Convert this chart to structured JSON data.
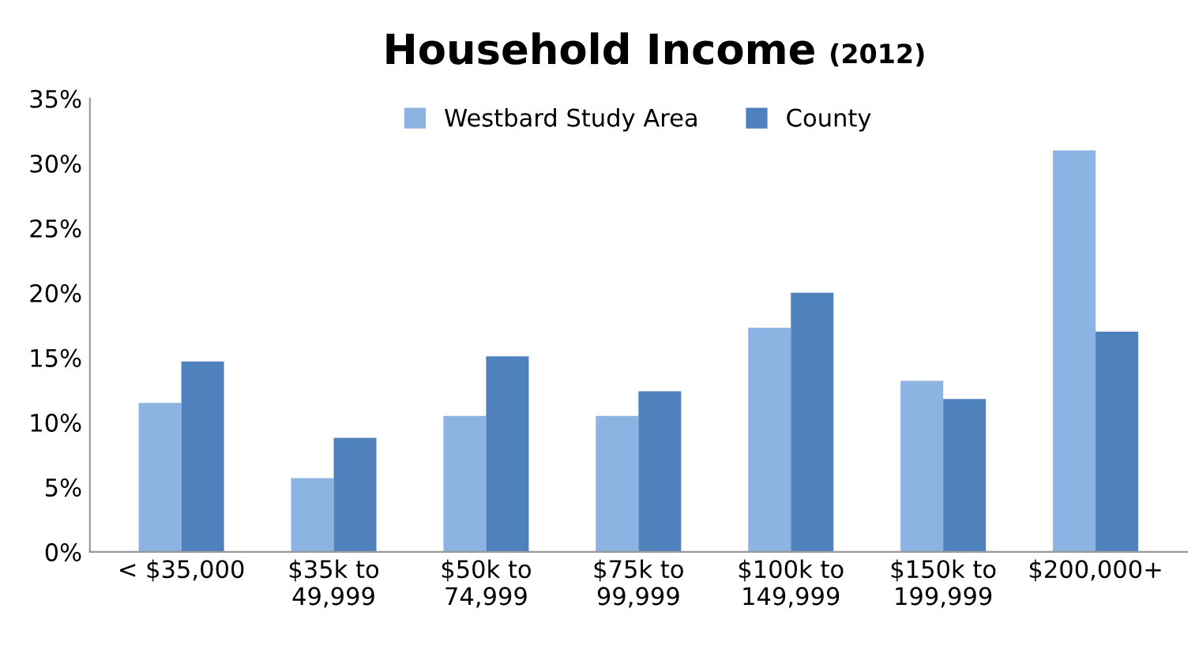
{
  "chart_data": {
    "type": "bar",
    "title": "Household Income",
    "subtitle": "(2012)",
    "categories": [
      "< $35,000",
      "$35k to\n49,999",
      "$50k to\n74,999",
      "$75k to\n99,999",
      "$100k to\n149,999",
      "$150k to\n199,999",
      "$200,000+"
    ],
    "series": [
      {
        "name": "Westbard Study Area",
        "color": "#8db3e2",
        "values": [
          11.5,
          5.7,
          10.5,
          10.5,
          17.3,
          13.2,
          31.0
        ]
      },
      {
        "name": "County",
        "color": "#4f81bd",
        "values": [
          14.7,
          8.8,
          15.1,
          12.4,
          20.0,
          11.8,
          17.0
        ]
      }
    ],
    "ylim": [
      0,
      35
    ],
    "yticks": [
      {
        "value": 0,
        "label": "0%"
      },
      {
        "value": 5,
        "label": "5%"
      },
      {
        "value": 10,
        "label": "10%"
      },
      {
        "value": 15,
        "label": "15%"
      },
      {
        "value": 20,
        "label": "20%"
      },
      {
        "value": 25,
        "label": "25%"
      },
      {
        "value": 30,
        "label": "30%"
      },
      {
        "value": 35,
        "label": "35%"
      }
    ],
    "grid": false,
    "legend": "top"
  }
}
